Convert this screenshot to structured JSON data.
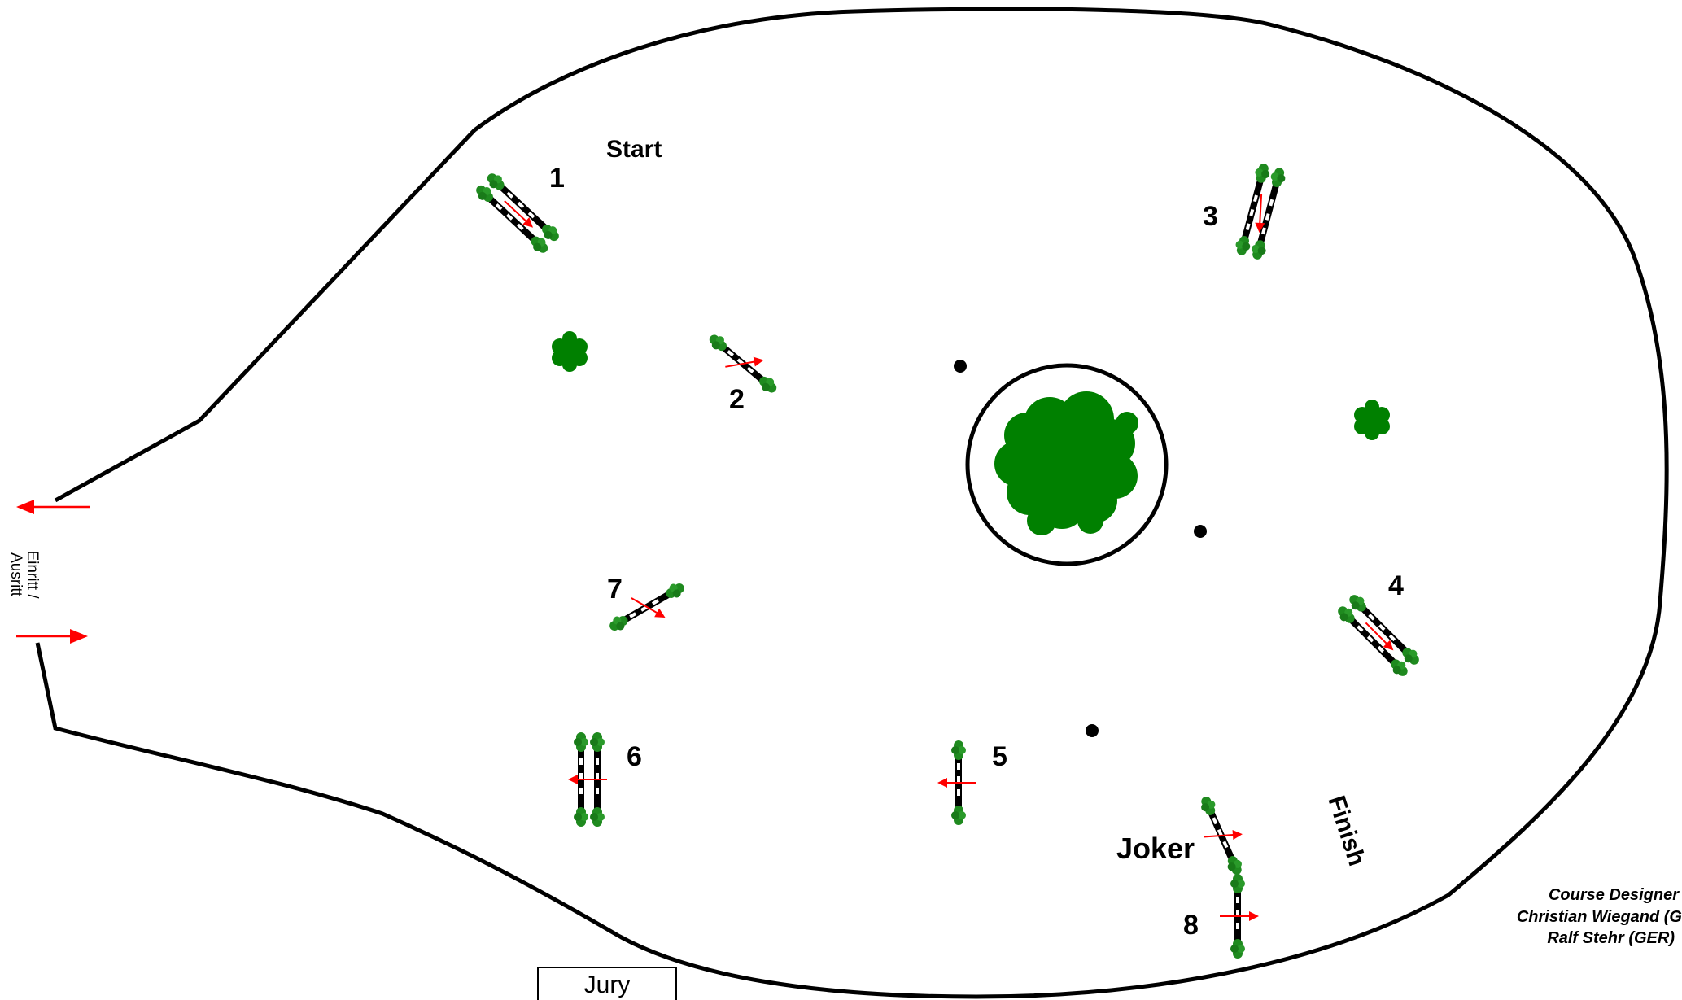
{
  "course": {
    "start_label": "Start",
    "finish_label": "Finish",
    "joker_label": "Joker",
    "entrance_label_line1": "Einritt /",
    "entrance_label_line2": "Ausritt",
    "jury_label": "Jury",
    "designer_title": "Course Designer",
    "designer_line1": "Christian Wiegand (G",
    "designer_line2": "Ralf Stehr (GER)"
  },
  "obstacles": [
    {
      "number": "1",
      "type": "oxer"
    },
    {
      "number": "2",
      "type": "vertical"
    },
    {
      "number": "3",
      "type": "oxer"
    },
    {
      "number": "4",
      "type": "oxer"
    },
    {
      "number": "5",
      "type": "vertical"
    },
    {
      "number": "6",
      "type": "oxer"
    },
    {
      "number": "7",
      "type": "vertical"
    },
    {
      "number": "8",
      "type": "vertical"
    },
    {
      "number": "Joker",
      "type": "vertical"
    }
  ],
  "colors": {
    "fence": "#000000",
    "arrow": "#ff0000",
    "greenery": "#008000"
  }
}
